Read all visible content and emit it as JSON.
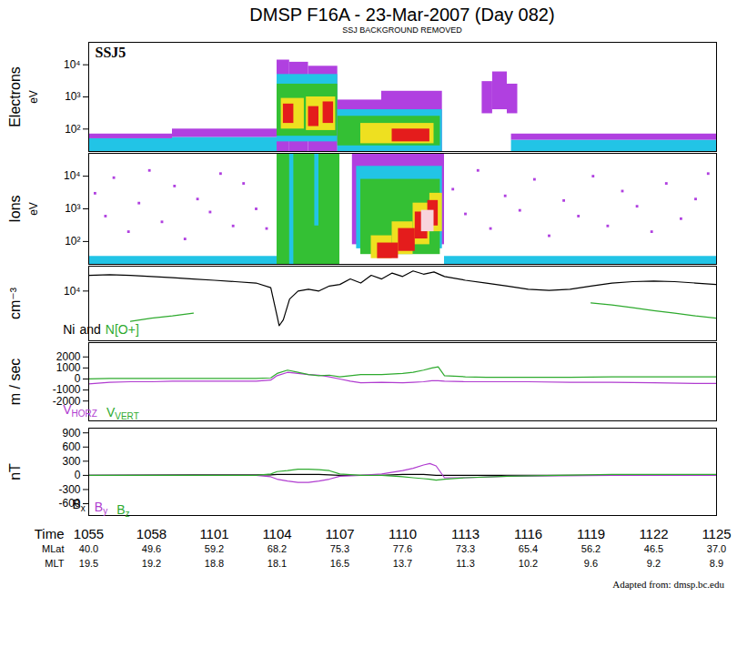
{
  "title": "DMSP F16A - 23-Mar-2007 (Day 082)",
  "subtitle": "SSJ BACKGROUND REMOVED",
  "caption": "Adapted from: dmsp.bc.edu",
  "ephemeris": {
    "x": [
      655,
      658,
      661,
      664,
      667,
      670,
      673,
      676,
      679,
      682,
      685
    ],
    "rows": [
      {
        "label": "Time",
        "values": [
          "1055",
          "1058",
          "1101",
          "1104",
          "1107",
          "1110",
          "1113",
          "1116",
          "1119",
          "1122",
          "1125"
        ]
      },
      {
        "label": "MLat",
        "values": [
          "40.0",
          "49.6",
          "59.2",
          "68.2",
          "75.3",
          "77.6",
          "73.3",
          "65.4",
          "56.2",
          "46.5",
          "37.0"
        ]
      },
      {
        "label": "MLT",
        "values": [
          "19.5",
          "19.2",
          "18.8",
          "18.1",
          "16.5",
          "13.7",
          "11.3",
          "10.2",
          "9.6",
          "9.2",
          "8.9"
        ]
      }
    ]
  },
  "chart_data": [
    {
      "type": "heatmap",
      "ylabel": "Electrons",
      "yunit": "eV",
      "annotation": "SSJ5",
      "xlim": [
        655,
        685
      ],
      "ylim": [
        20,
        50000
      ],
      "log": "y",
      "tick_labels": "y",
      "yticks": [
        {
          "value": 100,
          "label": "10²"
        },
        {
          "value": 1000,
          "label": "10³"
        },
        {
          "value": 10000,
          "label": "10⁴"
        }
      ],
      "cells": [
        [
          655,
          659,
          20,
          50,
          2
        ],
        [
          655,
          659,
          50,
          70,
          1
        ],
        [
          659,
          664,
          20,
          55,
          2
        ],
        [
          659,
          664,
          55,
          100,
          1
        ],
        [
          664,
          664.6,
          20,
          14000,
          1
        ],
        [
          664.6,
          665.5,
          20,
          12000,
          1
        ],
        [
          665.5,
          666.9,
          20,
          9000,
          1
        ],
        [
          664,
          666.9,
          40,
          5000,
          2
        ],
        [
          664,
          666.9,
          60,
          2500,
          3
        ],
        [
          664.2,
          665.3,
          100,
          900,
          4
        ],
        [
          665.4,
          666.8,
          90,
          1000,
          4
        ],
        [
          664.3,
          664.8,
          150,
          600,
          5
        ],
        [
          665.5,
          666.0,
          120,
          500,
          5
        ],
        [
          666.2,
          666.7,
          150,
          700,
          5
        ],
        [
          666.9,
          669,
          20,
          800,
          1
        ],
        [
          669,
          671.9,
          20,
          1500,
          1
        ],
        [
          666.9,
          671.9,
          20,
          400,
          2
        ],
        [
          666.9,
          671.8,
          30,
          250,
          3
        ],
        [
          668,
          671.5,
          35,
          150,
          4
        ],
        [
          669.5,
          671.3,
          40,
          100,
          5
        ],
        [
          673.8,
          674.3,
          300,
          3000,
          1
        ],
        [
          674.3,
          675.0,
          400,
          6000,
          1
        ],
        [
          675.0,
          675.5,
          300,
          2500,
          1
        ],
        [
          675.2,
          685,
          20,
          45,
          2
        ],
        [
          675.2,
          685,
          45,
          70,
          1
        ]
      ]
    },
    {
      "type": "heatmap",
      "ylabel": "Ions",
      "yunit": "eV",
      "xlim": [
        655,
        685
      ],
      "ylim": [
        20,
        50000
      ],
      "log": "y",
      "tick_labels": "y",
      "yticks": [
        {
          "value": 100,
          "label": "10²"
        },
        {
          "value": 1000,
          "label": "10³"
        },
        {
          "value": 10000,
          "label": "10⁴"
        }
      ],
      "cells": [
        [
          655,
          664,
          20,
          35,
          2
        ],
        [
          672,
          685,
          20,
          35,
          2
        ],
        [
          664,
          667,
          20,
          50000,
          3
        ],
        [
          664.6,
          664.8,
          20,
          50000,
          2
        ],
        [
          665.8,
          666.0,
          300,
          50000,
          2
        ],
        [
          667.6,
          672,
          80,
          50000,
          1
        ],
        [
          667.8,
          671.9,
          60,
          20000,
          2
        ],
        [
          668,
          671.8,
          40,
          8000,
          3
        ],
        [
          668.5,
          669.5,
          30,
          150,
          4
        ],
        [
          669.5,
          670.5,
          40,
          400,
          4
        ],
        [
          670.5,
          671.3,
          80,
          1500,
          4
        ],
        [
          671.3,
          671.9,
          200,
          3000,
          4
        ],
        [
          668.8,
          669.8,
          30,
          90,
          5
        ],
        [
          669.8,
          670.6,
          50,
          250,
          5
        ],
        [
          670.6,
          671.2,
          120,
          800,
          5
        ],
        [
          671.2,
          671.7,
          300,
          1800,
          5
        ],
        [
          670.9,
          671.5,
          200,
          900,
          6
        ]
      ],
      "points": [
        [
          655.3,
          3000
        ],
        [
          655.8,
          600
        ],
        [
          656.2,
          9000
        ],
        [
          656.9,
          200
        ],
        [
          657.4,
          1500
        ],
        [
          657.9,
          15000
        ],
        [
          658.5,
          400
        ],
        [
          659.1,
          5000
        ],
        [
          659.6,
          120
        ],
        [
          660.2,
          2000
        ],
        [
          660.8,
          800
        ],
        [
          661.3,
          12000
        ],
        [
          661.9,
          300
        ],
        [
          662.4,
          6000
        ],
        [
          663.0,
          1000
        ],
        [
          663.5,
          250
        ],
        [
          672.4,
          4000
        ],
        [
          673.0,
          700
        ],
        [
          673.6,
          15000
        ],
        [
          674.2,
          250
        ],
        [
          674.9,
          2500
        ],
        [
          675.6,
          900
        ],
        [
          676.3,
          8000
        ],
        [
          677.0,
          150
        ],
        [
          677.7,
          1800
        ],
        [
          678.4,
          600
        ],
        [
          679.1,
          10000
        ],
        [
          679.8,
          300
        ],
        [
          680.5,
          3500
        ],
        [
          681.2,
          1200
        ],
        [
          681.9,
          200
        ],
        [
          682.6,
          6000
        ],
        [
          683.3,
          500
        ],
        [
          684.0,
          2000
        ],
        [
          684.6,
          12000
        ]
      ]
    },
    {
      "type": "line",
      "ylabel": "cm⁻³",
      "xlim": [
        655,
        685
      ],
      "ylim": [
        2500,
        20000
      ],
      "log": "y",
      "tick_labels": "y",
      "yticks": [
        {
          "value": 10000,
          "label": "10⁴"
        }
      ],
      "legend": "lower left",
      "legend_joiner": "and",
      "x": [
        655,
        656,
        657,
        658,
        659,
        660,
        661,
        662,
        663,
        663.7,
        664,
        664.1,
        664.3,
        664.6,
        665,
        665.5,
        666,
        666.5,
        667,
        667.5,
        668,
        668.5,
        669,
        669.5,
        670,
        670.5,
        671,
        671.5,
        672,
        673,
        674,
        675,
        676,
        677,
        678,
        679,
        680,
        681,
        682,
        683,
        684,
        685
      ],
      "series": [
        {
          "name": "Ni",
          "color": "#000000",
          "values": [
            15500,
            15800,
            15500,
            15000,
            14500,
            14000,
            13500,
            13000,
            12500,
            11000,
            5000,
            3800,
            4500,
            8000,
            10000,
            10500,
            10000,
            11500,
            12000,
            14000,
            12500,
            15500,
            14000,
            16500,
            15000,
            17500,
            16000,
            17000,
            15000,
            13500,
            12500,
            11500,
            10500,
            10200,
            10500,
            11500,
            12500,
            13000,
            13200,
            13000,
            12500,
            12000
          ]
        },
        {
          "name": "N[O+]",
          "color": "#2eaa2e",
          "values": [
            null,
            null,
            4300,
            4700,
            5000,
            5400,
            null,
            null,
            null,
            null,
            null,
            null,
            null,
            null,
            null,
            null,
            null,
            null,
            null,
            null,
            null,
            null,
            null,
            null,
            null,
            null,
            null,
            null,
            null,
            null,
            null,
            null,
            null,
            null,
            null,
            7200,
            6800,
            6300,
            5800,
            5400,
            5000,
            4700
          ]
        }
      ]
    },
    {
      "type": "line",
      "ylabel": "m / sec",
      "xlim": [
        655,
        685
      ],
      "ylim": [
        -3800,
        3300
      ],
      "tick_labels": "y",
      "yticks": [
        -2000,
        -1000,
        0,
        1000,
        2000
      ],
      "legend": "lower left",
      "x": [
        655,
        656,
        657,
        658,
        659,
        660,
        661,
        662,
        663,
        663.7,
        664,
        664.5,
        665,
        665.5,
        666,
        666.5,
        667,
        667.5,
        668,
        669,
        670,
        670.5,
        671,
        671.4,
        671.7,
        672,
        673,
        674,
        676,
        678,
        680,
        682,
        684,
        685
      ],
      "series": [
        {
          "name": "VHORZ",
          "color": "#b03cd0",
          "values": [
            -450,
            -300,
            -250,
            -250,
            -200,
            -200,
            -200,
            -200,
            -200,
            -100,
            300,
            600,
            500,
            400,
            350,
            200,
            0,
            -200,
            -350,
            -300,
            -350,
            -300,
            -250,
            -150,
            -150,
            -200,
            -250,
            -250,
            -250,
            -300,
            -300,
            -350,
            -400,
            -400
          ]
        },
        {
          "name": "VVERT",
          "color": "#2eaa2e",
          "values": [
            0,
            50,
            50,
            50,
            50,
            50,
            50,
            50,
            50,
            100,
            500,
            800,
            600,
            400,
            300,
            350,
            200,
            300,
            400,
            400,
            500,
            600,
            800,
            1000,
            1100,
            300,
            200,
            150,
            150,
            150,
            200,
            200,
            200,
            200
          ]
        }
      ]
    },
    {
      "type": "line",
      "ylabel": "nT",
      "xlim": [
        655,
        685
      ],
      "ylim": [
        -850,
        1000
      ],
      "tick_labels": "y",
      "yticks": [
        -600,
        -300,
        0,
        300,
        600,
        900
      ],
      "legend": "lower left",
      "x": [
        655,
        660,
        663,
        663.7,
        664,
        664.5,
        665,
        665.5,
        666,
        666.5,
        667,
        668,
        669,
        670,
        670.5,
        671,
        671.3,
        671.6,
        672,
        673,
        675,
        680,
        685
      ],
      "series": [
        {
          "name": "Bx",
          "color": "#000000",
          "values": [
            0,
            10,
            10,
            10,
            20,
            20,
            20,
            20,
            20,
            10,
            0,
            0,
            0,
            20,
            20,
            20,
            10,
            0,
            0,
            0,
            0,
            0,
            0
          ]
        },
        {
          "name": "By",
          "color": "#b03cd0",
          "values": [
            0,
            0,
            0,
            -30,
            -80,
            -120,
            -150,
            -150,
            -120,
            -80,
            -20,
            0,
            30,
            100,
            150,
            220,
            250,
            200,
            -50,
            -50,
            -20,
            0,
            0
          ]
        },
        {
          "name": "Bz",
          "color": "#2eaa2e",
          "values": [
            0,
            0,
            0,
            30,
            80,
            100,
            130,
            130,
            120,
            100,
            30,
            0,
            0,
            -30,
            -50,
            -70,
            -80,
            -100,
            -80,
            -50,
            -20,
            20,
            20
          ]
        }
      ]
    }
  ]
}
